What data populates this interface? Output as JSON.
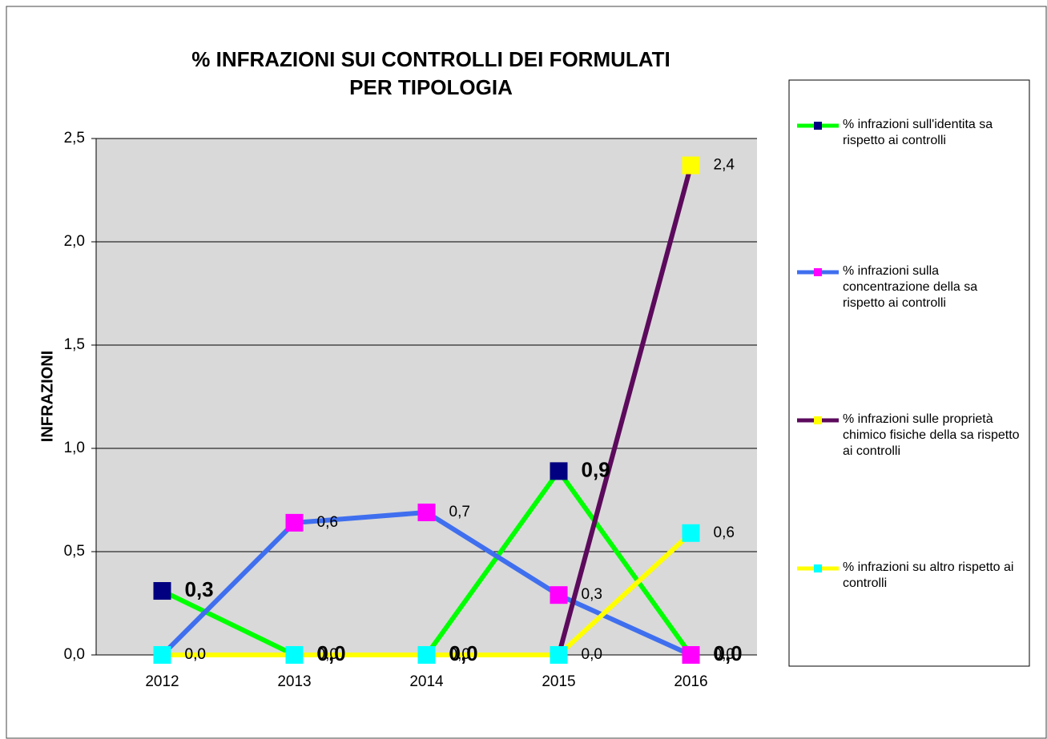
{
  "chart_data": {
    "type": "line",
    "title": [
      "% INFRAZIONI SUI CONTROLLI DEI  FORMULATI",
      "PER TIPOLOGIA"
    ],
    "y_label": "INFRAZIONI",
    "categories": [
      "2012",
      "2013",
      "2014",
      "2015",
      "2016"
    ],
    "ylim": [
      0,
      2.5
    ],
    "yticks": [
      {
        "value": 0,
        "label": "0,0"
      },
      {
        "value": 0.5,
        "label": "0,5"
      },
      {
        "value": 1,
        "label": "1,0"
      },
      {
        "value": 1.5,
        "label": "1,5"
      },
      {
        "value": 2,
        "label": "2,0"
      },
      {
        "value": 2.5,
        "label": "2,5"
      }
    ],
    "grid": true,
    "legend": "right",
    "series": [
      {
        "name": "% infrazioni sull'identita sa rispetto ai controlli",
        "color": "#00ff00",
        "marker_color": "#000080",
        "values": [
          0.31,
          0,
          0,
          0.89,
          0
        ],
        "value_labels": [
          "0,3",
          "0,0",
          "0,0",
          "0,9",
          "0,0"
        ],
        "bold_labels": true
      },
      {
        "name": "% infrazioni sulla concentrazione della sa rispetto ai controlli",
        "color": "#3f6fef",
        "marker_color": "#ff00ff",
        "values": [
          0,
          0.64,
          0.69,
          0.29,
          0
        ],
        "value_labels": [
          "0,0",
          "0,6",
          "0,7",
          "0,3",
          "0,0"
        ],
        "bold_labels": false
      },
      {
        "name": "% infrazioni sulle proprietà chimico fisiche della sa rispetto ai controlli",
        "color": "#5c0a5c",
        "marker_color": "#ffff00",
        "values": [
          null,
          null,
          null,
          0,
          2.37
        ],
        "value_labels": [
          null,
          null,
          null,
          null,
          "2,4"
        ],
        "bold_labels": false
      },
      {
        "name": "% infrazioni su altro rispetto ai controlli",
        "color": "#ffff00",
        "marker_color": "#00ffff",
        "values": [
          0,
          0,
          0,
          0,
          0.59
        ],
        "value_labels": [
          "0,0",
          "0,0",
          "0,0",
          "0,0",
          "0,6"
        ],
        "bold_labels": false
      }
    ]
  }
}
